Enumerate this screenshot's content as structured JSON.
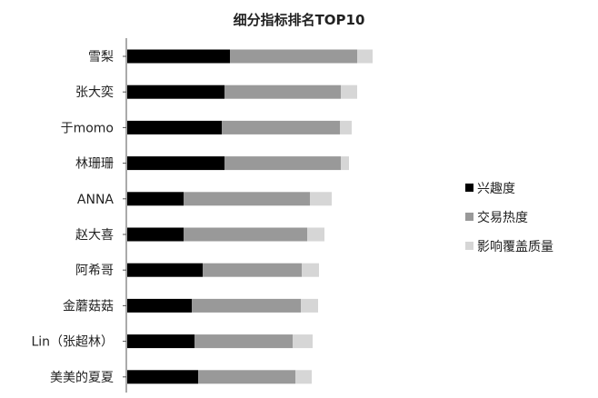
{
  "chart_data": {
    "type": "bar",
    "orientation": "horizontal",
    "stacked": true,
    "title": "细分指标排名TOP10",
    "categories": [
      "雪梨",
      "张大奕",
      "于momo",
      "林珊珊",
      "ANNA",
      "赵大喜",
      "阿希哥",
      "金蘑菇菇",
      "Lin（张超林）",
      "美美的夏夏"
    ],
    "series": [
      {
        "name": "兴趣度",
        "color": "#000000",
        "values": [
          113,
          107,
          104,
          107,
          62,
          62,
          83,
          71,
          74,
          78
        ]
      },
      {
        "name": "交易热度",
        "color": "#999999",
        "values": [
          140,
          128,
          130,
          128,
          139,
          136,
          109,
          120,
          108,
          107
        ]
      },
      {
        "name": "影响覆盖质量",
        "color": "#d6d6d6",
        "values": [
          17,
          18,
          13,
          9,
          24,
          19,
          19,
          19,
          22,
          18
        ]
      }
    ],
    "xlim": [
      0,
      300
    ],
    "grid": false,
    "legend_position": "right"
  }
}
